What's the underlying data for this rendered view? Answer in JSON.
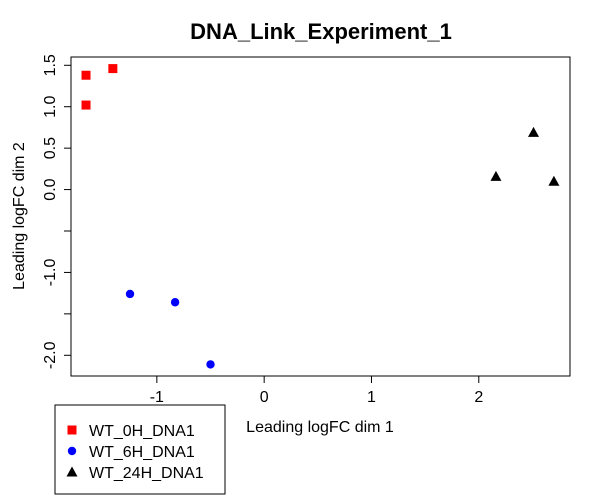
{
  "chart_data": {
    "type": "scatter",
    "title": "DNA_Link_Experiment_1",
    "xlabel": "Leading logFC dim 1",
    "ylabel": "Leading logFC dim 2",
    "xlim": [
      -1.8,
      2.85
    ],
    "ylim": [
      -2.25,
      1.6
    ],
    "x_ticks": [
      {
        "value": -1,
        "label": "-1"
      },
      {
        "value": 0,
        "label": "0"
      },
      {
        "value": 1,
        "label": "1"
      },
      {
        "value": 2,
        "label": "2"
      }
    ],
    "y_ticks": [
      {
        "value": 1.5,
        "label": "1.5"
      },
      {
        "value": 1.0,
        "label": "1.0"
      },
      {
        "value": 0.5,
        "label": "0.5"
      },
      {
        "value": 0.0,
        "label": "0.0"
      },
      {
        "value": -0.5,
        "label": ""
      },
      {
        "value": -1.0,
        "label": "-1.0"
      },
      {
        "value": -1.5,
        "label": ""
      },
      {
        "value": -2.0,
        "label": "-2.0"
      }
    ],
    "legend_position": "bottom-left",
    "grid": false,
    "series": [
      {
        "name": "WT_0H_DNA1",
        "marker": "square",
        "color": "#ff0000",
        "points": [
          {
            "x": -1.66,
            "y": 1.38
          },
          {
            "x": -1.66,
            "y": 1.02
          },
          {
            "x": -1.41,
            "y": 1.46
          }
        ]
      },
      {
        "name": "WT_6H_DNA1",
        "marker": "circle",
        "color": "#0000ff",
        "points": [
          {
            "x": -1.25,
            "y": -1.26
          },
          {
            "x": -0.83,
            "y": -1.36
          },
          {
            "x": -0.5,
            "y": -2.11
          }
        ]
      },
      {
        "name": "WT_24H_DNA1",
        "marker": "triangle",
        "color": "#000000",
        "points": [
          {
            "x": 2.16,
            "y": 0.16
          },
          {
            "x": 2.51,
            "y": 0.69
          },
          {
            "x": 2.7,
            "y": 0.1
          }
        ]
      }
    ]
  }
}
